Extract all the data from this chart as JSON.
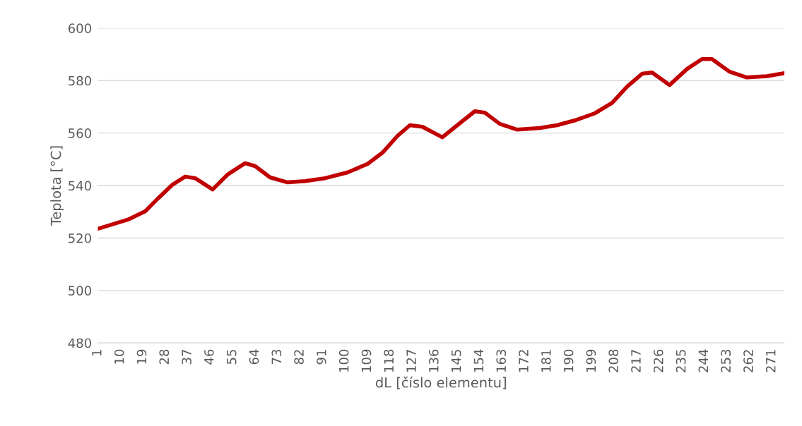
{
  "chart_data": {
    "type": "line",
    "xlabel": "dL [číslo elementu]",
    "ylabel": "Teplota [°C]",
    "x": [
      1,
      13,
      20,
      25,
      31,
      36,
      40,
      47,
      53,
      60,
      64,
      70,
      77,
      84,
      92,
      101,
      109,
      115,
      121,
      126,
      131,
      139,
      145,
      152,
      156,
      162,
      169,
      178,
      185,
      192,
      200,
      207,
      213,
      219,
      223,
      230,
      237,
      243,
      247,
      254,
      261,
      269,
      276
    ],
    "series": [
      {
        "color": "#c00000",
        "values": [
          523.5,
          527,
          530.2,
          535,
          540.4,
          543.4,
          542.8,
          538.5,
          544.2,
          548.5,
          547.4,
          543.1,
          541.2,
          541.7,
          542.8,
          545,
          548.2,
          552.5,
          558.9,
          563,
          562.4,
          558.4,
          563,
          568.3,
          567.8,
          563.5,
          561.3,
          561.9,
          563,
          564.8,
          567.5,
          571.5,
          577.7,
          582.6,
          583.1,
          578.3,
          584.4,
          588.2,
          588.2,
          583.4,
          581.2,
          581.7,
          582.8
        ]
      }
    ],
    "xlim": [
      1,
      276
    ],
    "xticks": [
      1,
      10,
      19,
      28,
      37,
      46,
      55,
      64,
      73,
      82,
      91,
      100,
      109,
      118,
      127,
      136,
      145,
      154,
      163,
      172,
      181,
      190,
      199,
      208,
      217,
      226,
      235,
      244,
      253,
      262,
      271
    ],
    "ylim": [
      480,
      600
    ],
    "yticks": [
      480,
      500,
      520,
      540,
      560,
      580,
      600
    ],
    "grid": "y",
    "legend": false,
    "marker": "none",
    "line_style": "solid"
  }
}
